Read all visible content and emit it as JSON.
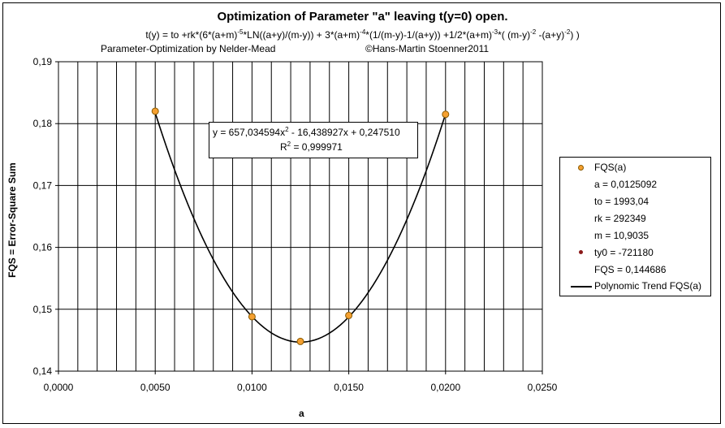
{
  "title": "Optimization of Parameter \"a\" leaving t(y=0) open.",
  "formula": {
    "p1": "t(y) = to +rk*(6*(a+m)",
    "s1": "-5",
    "p2": "*LN((a+y)/(m-y)) + 3*(a+m)",
    "s2": "-4",
    "p3": "*(1/(m-y)-1/(a+y)) +1/2*(a+m)",
    "s3": "-3",
    "p4": "*( (m-y)",
    "s4": "-2",
    "p5": " -(a+y)",
    "s5": "-2",
    "p6": ") )"
  },
  "subtitle_left": "Parameter-Optimization by Nelder-Mead",
  "subtitle_right": "©Hans-Martin Stoenner2011",
  "equation": {
    "line1_a": "y = 657,034594x",
    "line1_sup": "2",
    "line1_b": " - 16,438927x + 0,247510",
    "r2_a": "R",
    "r2_sup": "2",
    "r2_b": " = 0,999971"
  },
  "legend": {
    "series1": "FQS(a)",
    "a": "a = 0,0125092",
    "to": "to = 1993,04",
    "rk": "rk = 292349",
    "m": "m = 10,9035",
    "series2": "ty0 = -721180",
    "fqs": "FQS = 0,144686",
    "trend": "Polynomic Trend FQS(a)"
  },
  "colors": {
    "marker_fill": "#f5a030",
    "marker_edge": "#8a5a00",
    "ty0_marker": "#8b1a1a",
    "trend_line": "#000000",
    "grid": "#000000"
  },
  "chart_data": {
    "type": "scatter",
    "xlabel": "a",
    "ylabel": "FQS = Error-Square Sum",
    "xlim": [
      0.0,
      0.025
    ],
    "ylim": [
      0.14,
      0.19
    ],
    "x_ticks": [
      "0,0000",
      "0,0050",
      "0,0100",
      "0,0150",
      "0,0200",
      "0,0250"
    ],
    "y_ticks": [
      "0,14",
      "0,15",
      "0,16",
      "0,17",
      "0,18",
      "0,19"
    ],
    "grid": true,
    "legend_position": "right",
    "series": [
      {
        "name": "FQS(a)",
        "x": [
          0.005,
          0.01,
          0.0125,
          0.015,
          0.02
        ],
        "y": [
          0.182,
          0.1488,
          0.1448,
          0.149,
          0.1815
        ]
      }
    ],
    "trendline": {
      "name": "Polynomic Trend FQS(a)",
      "type": "polynomial",
      "coefficients": [
        657.034594,
        -16.438927,
        0.24751
      ],
      "x_range": [
        0.005,
        0.02
      ],
      "r_squared": 0.999971
    }
  }
}
